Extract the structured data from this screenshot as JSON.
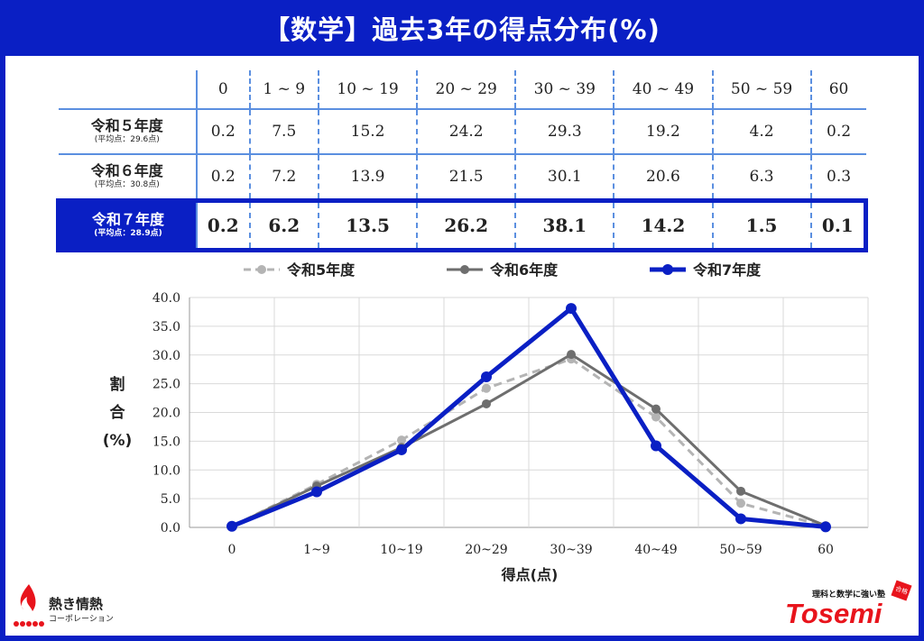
{
  "title": "【数学】過去3年の得点分布(%)",
  "table": {
    "headers": [
      "0",
      "1 ~ 9",
      "10 ~ 19",
      "20 ~ 29",
      "30 ~ 39",
      "40 ~ 49",
      "50 ~ 59",
      "60"
    ],
    "rows": [
      {
        "label": "令和５年度",
        "avg": "(平均点：29.6点)",
        "values": [
          "0.2",
          "7.5",
          "15.2",
          "24.2",
          "29.3",
          "19.2",
          "4.2",
          "0.2"
        ]
      },
      {
        "label": "令和６年度",
        "avg": "(平均点：30.8点)",
        "values": [
          "0.2",
          "7.2",
          "13.9",
          "21.5",
          "30.1",
          "20.6",
          "6.3",
          "0.3"
        ]
      },
      {
        "label": "令和７年度",
        "avg": "(平均点：28.9点)",
        "values": [
          "0.2",
          "6.2",
          "13.5",
          "26.2",
          "38.1",
          "14.2",
          "1.5",
          "0.1"
        ]
      }
    ]
  },
  "chart_data": {
    "type": "line",
    "categories": [
      "0",
      "1~9",
      "10~19",
      "20~29",
      "30~39",
      "40~49",
      "50~59",
      "60"
    ],
    "series": [
      {
        "name": "令和5年度",
        "values": [
          0.2,
          7.5,
          15.2,
          24.2,
          29.3,
          19.2,
          4.2,
          0.2
        ],
        "color": "#b4b4b4",
        "style": "dashed"
      },
      {
        "name": "令和6年度",
        "values": [
          0.2,
          7.2,
          13.9,
          21.5,
          30.1,
          20.6,
          6.3,
          0.3
        ],
        "color": "#6e6e6e",
        "style": "solid"
      },
      {
        "name": "令和7年度",
        "values": [
          0.2,
          6.2,
          13.5,
          26.2,
          38.1,
          14.2,
          1.5,
          0.1
        ],
        "color": "#0a1fc4",
        "style": "bold"
      }
    ],
    "xlabel": "得点(点)",
    "ylabel": "割合(%)",
    "ylabel_lines": [
      "割",
      "合",
      "(%)"
    ],
    "ylim": [
      0,
      40
    ],
    "yticks": [
      "0.0",
      "5.0",
      "10.0",
      "15.0",
      "20.0",
      "25.0",
      "30.0",
      "35.0",
      "40.0"
    ],
    "grid": true,
    "legend": "top"
  },
  "logos": {
    "left_main": "熱き情熱",
    "left_sub": "コーポレーション",
    "right_tagline": "理科と数学に強い塾",
    "right_brand": "Tosemi",
    "right_badge": "合格"
  },
  "colors": {
    "accent": "#0a1fc4",
    "table_line": "#5b8fe0",
    "brand_red": "#e8141c"
  }
}
